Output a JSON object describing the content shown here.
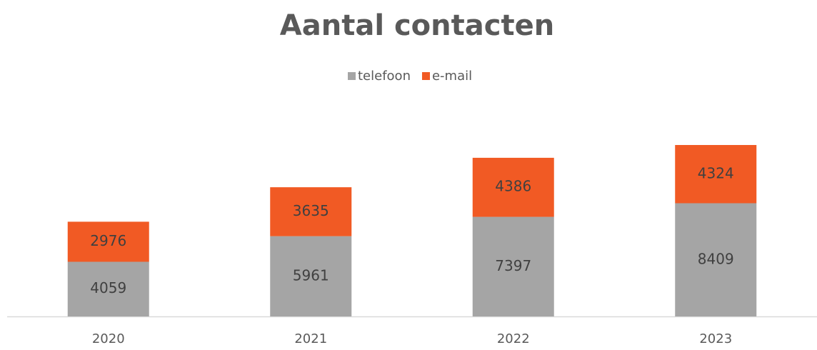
{
  "chart_data": {
    "type": "stacked_bar",
    "title": "Aantal contacten",
    "categories": [
      "2020",
      "2021",
      "2022",
      "2023"
    ],
    "series": [
      {
        "name": "telefoon",
        "color": "#a5a5a5",
        "values": [
          4059,
          5961,
          7397,
          8409
        ]
      },
      {
        "name": "e-mail",
        "color": "#f15a24",
        "values": [
          2976,
          3635,
          4386,
          4324
        ]
      }
    ],
    "legend": "top"
  }
}
